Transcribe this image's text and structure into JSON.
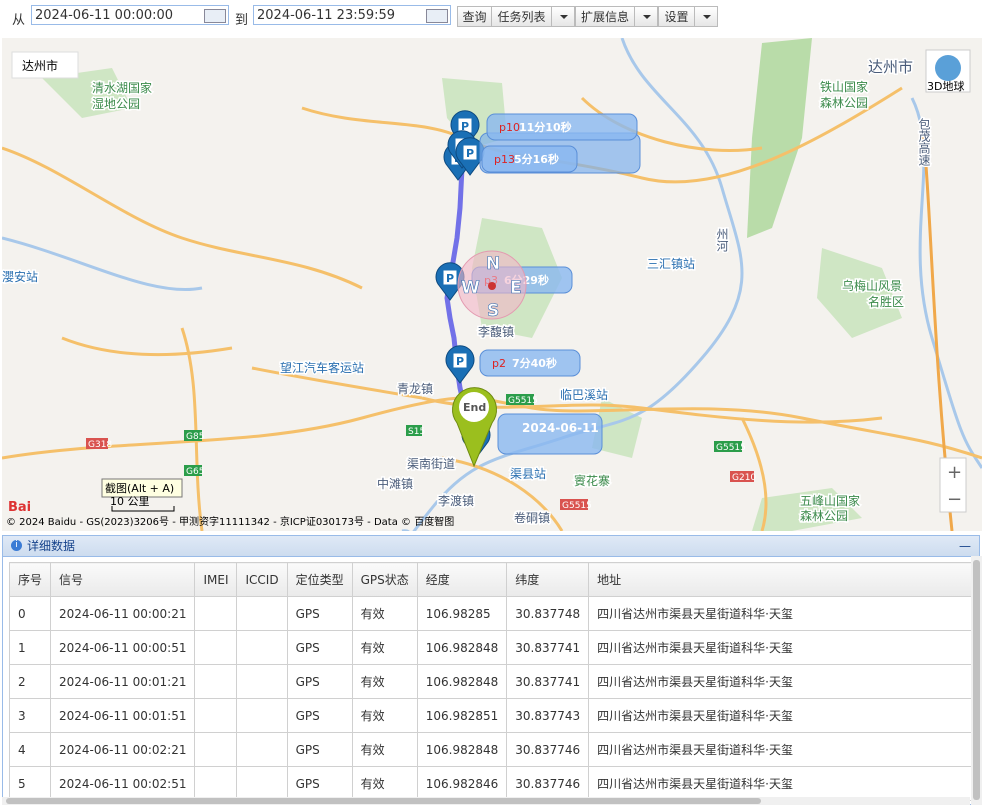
{
  "toolbar": {
    "from_label": "从",
    "start": "2024-06-11 00:00:00",
    "to_label": "到",
    "end": "2024-06-11 23:59:59",
    "query": "查询",
    "task_list": "任务列表",
    "ext_info": "扩展信息",
    "settings": "设置"
  },
  "map": {
    "city_select": "达州市",
    "globe": "3D地球",
    "labels": [
      "达州市",
      "清水湖国家",
      "湿地公园",
      "铁山国家",
      "森林公园",
      "包茂高速",
      "三汇镇站",
      "乌梅山风景",
      "名胜区",
      "李馥镇",
      "望江汽车客运站",
      "青龙镇",
      "临巴溪站",
      "渠南街道",
      "中滩镇",
      "渠县站",
      "賨花寨",
      "李渡镇",
      "卷硐镇",
      "五峰山国家",
      "森林公园",
      "瀴安站",
      "州河"
    ],
    "roads": [
      "G318",
      "G85",
      "S15",
      "G5515",
      "G5515",
      "G210",
      "G5515",
      "G65"
    ],
    "markers": [
      {
        "id": "p10",
        "time": "11分10秒"
      },
      {
        "id": "p13",
        "time": "5分16秒"
      },
      {
        "id": "p3",
        "time": "6分29秒"
      },
      {
        "id": "p2",
        "time": "7分40秒"
      }
    ],
    "date_label": "2024-06-11",
    "end_label": "End",
    "compass": [
      "N",
      "W",
      "E",
      "S"
    ],
    "screenshot_tip": "截图(Alt + A)",
    "scale": "10 公里",
    "zoom_in": "+",
    "zoom_out": "−",
    "copyright": "© 2024 Baidu - GS(2023)3206号 - 甲测资字11111342 - 京ICP证030173号 - Data © 百度智图"
  },
  "panel": {
    "title": "详细数据",
    "columns": [
      "序号",
      "信号",
      "IMEI",
      "ICCID",
      "定位类型",
      "GPS状态",
      "经度",
      "纬度",
      "地址"
    ],
    "rows": [
      [
        "0",
        "2024-06-11 00:00:21",
        "",
        "",
        "GPS",
        "有效",
        "106.98285",
        "30.837748",
        "四川省达州市渠县天星街道科华·天玺"
      ],
      [
        "1",
        "2024-06-11 00:00:51",
        "",
        "",
        "GPS",
        "有效",
        "106.982848",
        "30.837741",
        "四川省达州市渠县天星街道科华·天玺"
      ],
      [
        "2",
        "2024-06-11 00:01:21",
        "",
        "",
        "GPS",
        "有效",
        "106.982848",
        "30.837741",
        "四川省达州市渠县天星街道科华·天玺"
      ],
      [
        "3",
        "2024-06-11 00:01:51",
        "",
        "",
        "GPS",
        "有效",
        "106.982851",
        "30.837743",
        "四川省达州市渠县天星街道科华·天玺"
      ],
      [
        "4",
        "2024-06-11 00:02:21",
        "",
        "",
        "GPS",
        "有效",
        "106.982848",
        "30.837746",
        "四川省达州市渠县天星街道科华·天玺"
      ],
      [
        "5",
        "2024-06-11 00:02:51",
        "",
        "",
        "GPS",
        "有效",
        "106.982846",
        "30.837746",
        "四川省达州市渠县天星街道科华·天玺"
      ]
    ]
  }
}
